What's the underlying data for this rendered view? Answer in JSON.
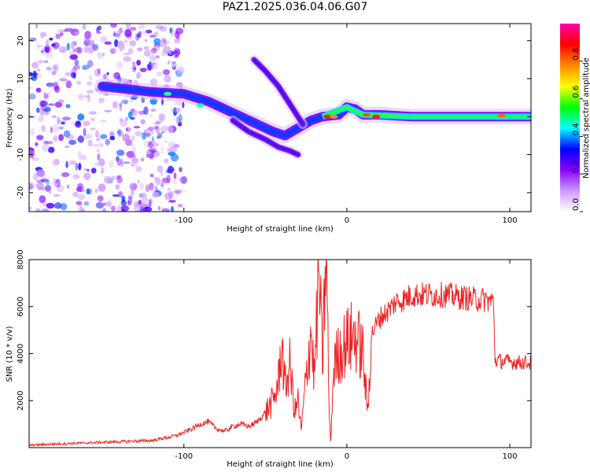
{
  "title": "PAZ1.2025.036.04.06.G07",
  "chart_data": [
    {
      "type": "heatmap",
      "xlabel": "Height of straight line (km)",
      "ylabel": "Frequency (Hz)",
      "xlim": [
        -195,
        113
      ],
      "ylim": [
        -25,
        24.5
      ],
      "xticks": [
        -100,
        0,
        100
      ],
      "yticks": [
        20,
        10,
        0,
        -10,
        -20
      ],
      "grid": false,
      "colorbar": {
        "label": "Normalized spectral amplitude",
        "range": [
          0,
          1
        ],
        "ticks": [
          "0.0",
          "0.2",
          "0.4",
          "0.6",
          "0.8"
        ],
        "colors": [
          "#ffffff",
          "#cc99ff",
          "#8800ff",
          "#0000ff",
          "#00ffff",
          "#00ff00",
          "#ffff00",
          "#ff8800",
          "#ff0000",
          "#ff00aa"
        ]
      },
      "ridges": [
        {
          "name": "main",
          "points": [
            [
              -150,
              8
            ],
            [
              -140,
              7.5
            ],
            [
              -120,
              6.5
            ],
            [
              -100,
              6
            ],
            [
              -85,
              4
            ],
            [
              -75,
              2
            ],
            [
              -65,
              0
            ],
            [
              -55,
              -2
            ],
            [
              -45,
              -4
            ],
            [
              -38,
              -5
            ],
            [
              -30,
              -3
            ],
            [
              -22,
              -1
            ],
            [
              -15,
              0
            ],
            [
              -5,
              0.5
            ],
            [
              0,
              2.5
            ],
            [
              5,
              2
            ],
            [
              10,
              0.5
            ],
            [
              20,
              0.5
            ],
            [
              40,
              0
            ],
            [
              60,
              0
            ],
            [
              80,
              0
            ],
            [
              100,
              0
            ],
            [
              113,
              0
            ]
          ]
        },
        {
          "name": "upper-branch",
          "points": [
            [
              -57,
              15
            ],
            [
              -50,
              12
            ],
            [
              -42,
              8
            ],
            [
              -36,
              4
            ],
            [
              -30,
              0
            ],
            [
              -27,
              -2
            ]
          ]
        },
        {
          "name": "lower-branch",
          "points": [
            [
              -70,
              -1
            ],
            [
              -60,
              -4
            ],
            [
              -50,
              -6
            ],
            [
              -42,
              -8
            ],
            [
              -35,
              -9
            ],
            [
              -30,
              -10
            ]
          ]
        }
      ]
    },
    {
      "type": "line",
      "xlabel": "Height of straight line (km)",
      "ylabel": "SNR (10 * v/v)",
      "xlim": [
        -195,
        113
      ],
      "ylim": [
        0,
        8000
      ],
      "xticks": [
        -100,
        0,
        100
      ],
      "yticks": [
        2000,
        4000,
        6000,
        8000
      ],
      "line_color": "#ee2222",
      "series": [
        {
          "x": [
            -195,
            -180,
            -160,
            -140,
            -120,
            -105,
            -95,
            -90,
            -85,
            -80,
            -75,
            -70,
            -65,
            -60,
            -55,
            -50,
            -45,
            -42,
            -40,
            -38,
            -35,
            -32,
            -30,
            -28,
            -25,
            -22,
            -20,
            -17,
            -15,
            -13,
            -12,
            -11,
            -10,
            -8,
            -5,
            0,
            5,
            10,
            12,
            13,
            14,
            15,
            20,
            25,
            30,
            35,
            40,
            50,
            60,
            70,
            80,
            85,
            90,
            91,
            92,
            100,
            113
          ],
          "y": [
            100,
            150,
            200,
            250,
            300,
            500,
            800,
            1000,
            1100,
            800,
            700,
            900,
            1000,
            900,
            1100,
            1500,
            2000,
            2800,
            4500,
            2500,
            3500,
            1500,
            2000,
            700,
            3000,
            5000,
            3000,
            7500,
            3500,
            8000,
            6000,
            2000,
            200,
            3500,
            4000,
            4500,
            4800,
            4000,
            2000,
            1500,
            3500,
            4800,
            5500,
            5800,
            6200,
            6300,
            6500,
            6500,
            6500,
            6400,
            6300,
            6300,
            6200,
            3700,
            3700,
            3650,
            3600
          ]
        }
      ]
    }
  ]
}
